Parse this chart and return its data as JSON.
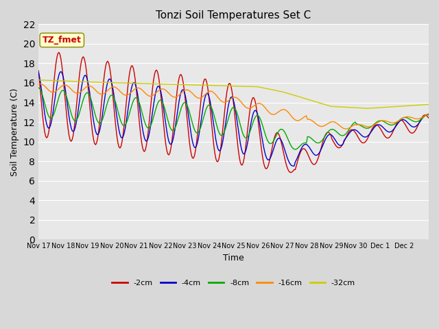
{
  "title": "Tonzi Soil Temperatures Set C",
  "xlabel": "Time",
  "ylabel": "Soil Temperature (C)",
  "ylim": [
    0,
    22
  ],
  "yticks": [
    0,
    2,
    4,
    6,
    8,
    10,
    12,
    14,
    16,
    18,
    20,
    22
  ],
  "xtick_labels": [
    "Nov 17",
    "Nov 18",
    "Nov 19",
    "Nov 20",
    "Nov 21",
    "Nov 22",
    "Nov 23",
    "Nov 24",
    "Nov 25",
    "Nov 26",
    "Nov 27",
    "Nov 28",
    "Nov 29",
    "Nov 30",
    "Dec 1",
    "Dec 2"
  ],
  "annotation_text": "TZ_fmet",
  "colors": {
    "-2cm": "#cc0000",
    "-4cm": "#0000cc",
    "-8cm": "#00aa00",
    "-16cm": "#ff8800",
    "-32cm": "#cccc00"
  },
  "legend_labels": [
    "-2cm",
    "-4cm",
    "-8cm",
    "-16cm",
    "-32cm"
  ],
  "fig_bg_color": "#d8d8d8",
  "plot_bg_color": "#e8e8e8",
  "grid_color": "#ffffff"
}
